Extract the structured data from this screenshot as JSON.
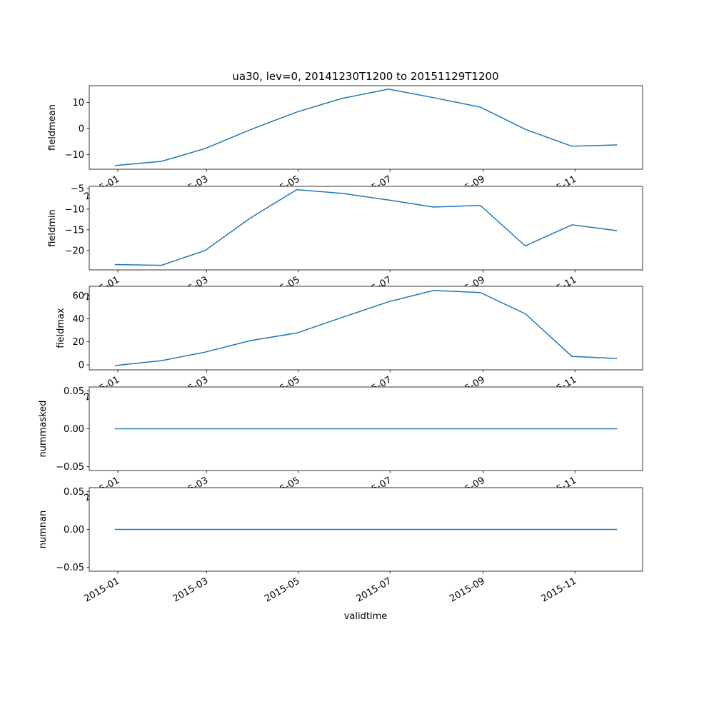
{
  "chart_data": {
    "type": "line",
    "title": "ua30, lev=0, 20141230T1200 to 20151129T1200",
    "xlabel": "validtime",
    "x": [
      "2014-12-30",
      "2015-01-30",
      "2015-02-28",
      "2015-03-30",
      "2015-04-30",
      "2015-05-30",
      "2015-06-30",
      "2015-07-30",
      "2015-08-30",
      "2015-09-29",
      "2015-10-30",
      "2015-11-29"
    ],
    "xlim": [
      "2014-12-13",
      "2015-12-16"
    ],
    "xticks": [
      "2015-01",
      "2015-03",
      "2015-05",
      "2015-07",
      "2015-09",
      "2015-11"
    ],
    "line_color": "#1f77b4",
    "panels": [
      {
        "ylabel": "fieldmean",
        "ylim": [
          -15.6,
          16.4
        ],
        "yticks": [
          -10,
          0,
          10
        ],
        "values": [
          -14.2,
          -12.6,
          -7.7,
          -0.5,
          6.3,
          11.5,
          15.1,
          11.8,
          8.2,
          -0.3,
          -6.8,
          -6.3
        ]
      },
      {
        "ylabel": "fieldmin",
        "ylim": [
          -24.7,
          -4.5
        ],
        "yticks": [
          -20,
          -15,
          -10,
          -5
        ],
        "values": [
          -23.4,
          -23.6,
          -20.0,
          -12.2,
          -5.3,
          -6.2,
          -7.8,
          -9.5,
          -9.1,
          -18.9,
          -13.8,
          -15.2
        ]
      },
      {
        "ylabel": "fieldmax",
        "ylim": [
          -4.3,
          68
        ],
        "yticks": [
          0,
          20,
          40,
          60
        ],
        "values": [
          -0.6,
          3.7,
          11.0,
          21.0,
          27.6,
          41.0,
          54.6,
          64.4,
          62.6,
          44.2,
          7.4,
          5.5
        ]
      },
      {
        "ylabel": "nummasked",
        "ylim": [
          -0.055,
          0.055
        ],
        "yticks": [
          -0.05,
          0.0,
          0.05
        ],
        "ytick_labels": [
          "−0.05",
          "0.00",
          "0.05"
        ],
        "values": [
          0,
          0,
          0,
          0,
          0,
          0,
          0,
          0,
          0,
          0,
          0,
          0
        ]
      },
      {
        "ylabel": "numnan",
        "ylim": [
          -0.055,
          0.055
        ],
        "yticks": [
          -0.05,
          0.0,
          0.05
        ],
        "ytick_labels": [
          "−0.05",
          "0.00",
          "0.05"
        ],
        "values": [
          0,
          0,
          0,
          0,
          0,
          0,
          0,
          0,
          0,
          0,
          0,
          0
        ]
      }
    ]
  }
}
